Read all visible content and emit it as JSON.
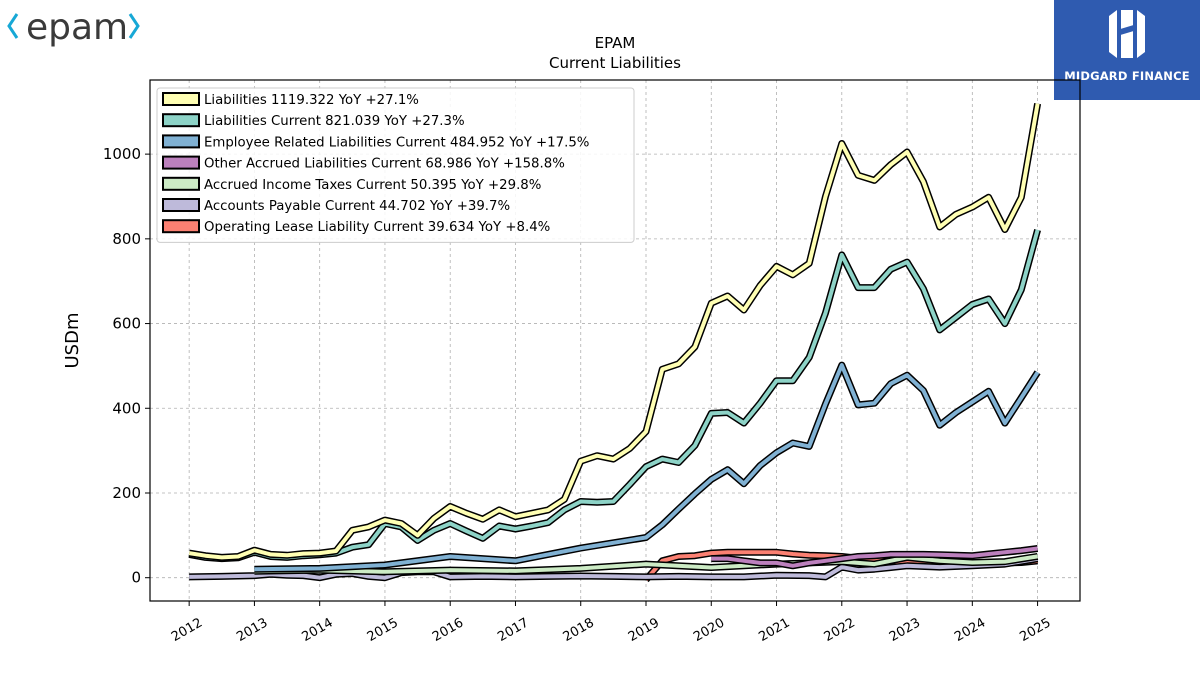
{
  "branding": {
    "left_logo_text": "epam",
    "right_logo_text": "MIDGARD FINANCE",
    "right_logo_color": "#2f5bb0",
    "left_logo_color": "#3a3a3a",
    "left_logo_accent": "#17a8d6"
  },
  "chart_data": {
    "type": "line",
    "title": "EPAM",
    "subtitle": "Current  Liabilities",
    "xlabel": "",
    "ylabel": "USDm",
    "xlim": [
      2011.4,
      2025.65
    ],
    "ylim": [
      -55,
      1175
    ],
    "yticks": [
      0,
      200,
      400,
      600,
      800,
      1000
    ],
    "xticks": [
      2012,
      2013,
      2014,
      2015,
      2016,
      2017,
      2018,
      2019,
      2020,
      2021,
      2022,
      2023,
      2024,
      2025
    ],
    "grid": true,
    "legend_position": "top-left",
    "series": [
      {
        "name": "Liabilities",
        "legend_label": "Liabilities  1119.322 YoY +27.1%",
        "color": "#ffffb3",
        "points": [
          [
            2012.0,
            58
          ],
          [
            2012.25,
            52
          ],
          [
            2012.5,
            48
          ],
          [
            2012.75,
            50
          ],
          [
            2013.0,
            65
          ],
          [
            2013.25,
            55
          ],
          [
            2013.5,
            53
          ],
          [
            2013.75,
            57
          ],
          [
            2014.0,
            58
          ],
          [
            2014.25,
            63
          ],
          [
            2014.5,
            112
          ],
          [
            2014.75,
            120
          ],
          [
            2015.0,
            136
          ],
          [
            2015.25,
            128
          ],
          [
            2015.5,
            100
          ],
          [
            2015.75,
            140
          ],
          [
            2016.0,
            168
          ],
          [
            2016.25,
            152
          ],
          [
            2016.5,
            138
          ],
          [
            2016.75,
            160
          ],
          [
            2017.0,
            144
          ],
          [
            2017.25,
            152
          ],
          [
            2017.5,
            160
          ],
          [
            2017.75,
            185
          ],
          [
            2018.0,
            275
          ],
          [
            2018.25,
            288
          ],
          [
            2018.5,
            280
          ],
          [
            2018.75,
            305
          ],
          [
            2019.0,
            345
          ],
          [
            2019.25,
            492
          ],
          [
            2019.5,
            505
          ],
          [
            2019.75,
            545
          ],
          [
            2020.0,
            648
          ],
          [
            2020.25,
            665
          ],
          [
            2020.5,
            632
          ],
          [
            2020.75,
            690
          ],
          [
            2021.0,
            735
          ],
          [
            2021.25,
            715
          ],
          [
            2021.5,
            742
          ],
          [
            2021.75,
            900
          ],
          [
            2022.0,
            1025
          ],
          [
            2022.25,
            950
          ],
          [
            2022.5,
            938
          ],
          [
            2022.75,
            975
          ],
          [
            2023.0,
            1005
          ],
          [
            2023.25,
            935
          ],
          [
            2023.5,
            828
          ],
          [
            2023.75,
            858
          ],
          [
            2024.0,
            875
          ],
          [
            2024.25,
            898
          ],
          [
            2024.5,
            822
          ],
          [
            2024.75,
            898
          ],
          [
            2025.0,
            1119.322
          ]
        ]
      },
      {
        "name": "Liabilities Current",
        "legend_label": "Liabilities Current  821.039 YoY +27.3%",
        "color": "#8dd3c7",
        "points": [
          [
            2012.0,
            55
          ],
          [
            2012.25,
            48
          ],
          [
            2012.5,
            45
          ],
          [
            2012.75,
            47
          ],
          [
            2013.0,
            60
          ],
          [
            2013.25,
            50
          ],
          [
            2013.5,
            48
          ],
          [
            2013.75,
            52
          ],
          [
            2014.0,
            54
          ],
          [
            2014.25,
            58
          ],
          [
            2014.5,
            72
          ],
          [
            2014.75,
            78
          ],
          [
            2015.0,
            128
          ],
          [
            2015.25,
            120
          ],
          [
            2015.5,
            88
          ],
          [
            2015.75,
            112
          ],
          [
            2016.0,
            128
          ],
          [
            2016.25,
            110
          ],
          [
            2016.5,
            93
          ],
          [
            2016.75,
            122
          ],
          [
            2017.0,
            115
          ],
          [
            2017.25,
            122
          ],
          [
            2017.5,
            130
          ],
          [
            2017.75,
            160
          ],
          [
            2018.0,
            180
          ],
          [
            2018.25,
            178
          ],
          [
            2018.5,
            180
          ],
          [
            2018.75,
            220
          ],
          [
            2019.0,
            262
          ],
          [
            2019.25,
            280
          ],
          [
            2019.5,
            272
          ],
          [
            2019.75,
            312
          ],
          [
            2020.0,
            388
          ],
          [
            2020.25,
            390
          ],
          [
            2020.5,
            365
          ],
          [
            2020.75,
            412
          ],
          [
            2021.0,
            465
          ],
          [
            2021.25,
            465
          ],
          [
            2021.5,
            520
          ],
          [
            2021.75,
            625
          ],
          [
            2022.0,
            762
          ],
          [
            2022.25,
            685
          ],
          [
            2022.5,
            685
          ],
          [
            2022.75,
            728
          ],
          [
            2023.0,
            745
          ],
          [
            2023.25,
            682
          ],
          [
            2023.5,
            585
          ],
          [
            2023.75,
            615
          ],
          [
            2024.0,
            645
          ],
          [
            2024.25,
            658
          ],
          [
            2024.5,
            600
          ],
          [
            2024.75,
            680
          ],
          [
            2025.0,
            821.039
          ]
        ]
      },
      {
        "name": "Employee Related Liabilities Current",
        "legend_label": "Employee Related Liabilities Current  484.952 YoY +17.5%",
        "color": "#80b1d3",
        "points": [
          [
            2013.0,
            20
          ],
          [
            2014.0,
            22
          ],
          [
            2015.0,
            30
          ],
          [
            2016.0,
            50
          ],
          [
            2017.0,
            40
          ],
          [
            2018.0,
            70
          ],
          [
            2019.0,
            95
          ],
          [
            2019.25,
            125
          ],
          [
            2019.5,
            162
          ],
          [
            2019.75,
            198
          ],
          [
            2020.0,
            232
          ],
          [
            2020.25,
            255
          ],
          [
            2020.5,
            222
          ],
          [
            2020.75,
            265
          ],
          [
            2021.0,
            295
          ],
          [
            2021.25,
            318
          ],
          [
            2021.5,
            310
          ],
          [
            2021.75,
            410
          ],
          [
            2022.0,
            502
          ],
          [
            2022.25,
            408
          ],
          [
            2022.5,
            412
          ],
          [
            2022.75,
            458
          ],
          [
            2023.0,
            478
          ],
          [
            2023.25,
            442
          ],
          [
            2023.5,
            360
          ],
          [
            2023.75,
            390
          ],
          [
            2024.0,
            415
          ],
          [
            2024.25,
            440
          ],
          [
            2024.5,
            365
          ],
          [
            2024.75,
            425
          ],
          [
            2025.0,
            484.952
          ]
        ]
      },
      {
        "name": "Other Accrued Liabilities Current",
        "legend_label": "Other Accrued Liabilities Current  68.986 YoY +158.8%",
        "color": "#bc80bd",
        "points": [
          [
            2020.0,
            45
          ],
          [
            2020.25,
            45
          ],
          [
            2020.5,
            40
          ],
          [
            2020.75,
            35
          ],
          [
            2021.0,
            35
          ],
          [
            2021.25,
            28
          ],
          [
            2021.5,
            35
          ],
          [
            2021.75,
            40
          ],
          [
            2022.0,
            45
          ],
          [
            2022.25,
            50
          ],
          [
            2022.5,
            52
          ],
          [
            2022.75,
            55
          ],
          [
            2023.0,
            55
          ],
          [
            2023.25,
            55
          ],
          [
            2023.5,
            54
          ],
          [
            2023.75,
            53
          ],
          [
            2024.0,
            52
          ],
          [
            2024.25,
            56
          ],
          [
            2024.5,
            60
          ],
          [
            2024.75,
            64
          ],
          [
            2025.0,
            68.986
          ]
        ]
      },
      {
        "name": "Accrued Income Taxes Current",
        "legend_label": "Accrued Income Taxes Current  50.395 YoY +29.8%",
        "color": "#ccebc5",
        "points": [
          [
            2013.0,
            15
          ],
          [
            2014.0,
            18
          ],
          [
            2015.0,
            14
          ],
          [
            2016.0,
            18
          ],
          [
            2017.0,
            16
          ],
          [
            2018.0,
            22
          ],
          [
            2019.0,
            32
          ],
          [
            2020.0,
            24
          ],
          [
            2020.5,
            28
          ],
          [
            2021.0,
            32
          ],
          [
            2021.5,
            35
          ],
          [
            2022.0,
            38
          ],
          [
            2022.5,
            32
          ],
          [
            2023.0,
            48
          ],
          [
            2023.5,
            40
          ],
          [
            2024.0,
            36
          ],
          [
            2024.5,
            38
          ],
          [
            2025.0,
            50.395
          ]
        ]
      },
      {
        "name": "Accounts Payable Current",
        "legend_label": "Accounts Payable Current  44.702 YoY +39.7%",
        "color": "#bebada",
        "points": [
          [
            2012.0,
            2
          ],
          [
            2012.5,
            3
          ],
          [
            2013.0,
            5
          ],
          [
            2013.25,
            8
          ],
          [
            2013.5,
            6
          ],
          [
            2013.75,
            5
          ],
          [
            2014.0,
            0
          ],
          [
            2014.25,
            8
          ],
          [
            2014.5,
            10
          ],
          [
            2014.75,
            3
          ],
          [
            2015.0,
            0
          ],
          [
            2015.25,
            12
          ],
          [
            2015.5,
            14
          ],
          [
            2015.75,
            14
          ],
          [
            2016.0,
            2
          ],
          [
            2016.5,
            3
          ],
          [
            2017.0,
            2
          ],
          [
            2017.5,
            3
          ],
          [
            2018.0,
            4
          ],
          [
            2018.5,
            3
          ],
          [
            2019.0,
            2
          ],
          [
            2019.5,
            3
          ],
          [
            2020.0,
            2
          ],
          [
            2020.5,
            2
          ],
          [
            2021.0,
            6
          ],
          [
            2021.5,
            5
          ],
          [
            2021.75,
            2
          ],
          [
            2022.0,
            25
          ],
          [
            2022.25,
            18
          ],
          [
            2022.5,
            20
          ],
          [
            2022.75,
            24
          ],
          [
            2023.0,
            28
          ],
          [
            2023.5,
            25
          ],
          [
            2024.0,
            28
          ],
          [
            2024.5,
            32
          ],
          [
            2025.0,
            44.702
          ]
        ]
      },
      {
        "name": "Operating Lease Liability Current",
        "legend_label": "Operating Lease Liability Current  39.634 YoY +8.4%",
        "color": "#fb8072",
        "points": [
          [
            2019.0,
            -5
          ],
          [
            2019.25,
            40
          ],
          [
            2019.5,
            50
          ],
          [
            2019.75,
            52
          ],
          [
            2020.0,
            58
          ],
          [
            2020.25,
            60
          ],
          [
            2020.5,
            60
          ],
          [
            2020.75,
            60
          ],
          [
            2021.0,
            60
          ],
          [
            2021.25,
            56
          ],
          [
            2021.5,
            53
          ],
          [
            2021.75,
            52
          ],
          [
            2022.0,
            50
          ],
          [
            2022.25,
            46
          ],
          [
            2022.5,
            42
          ],
          [
            2022.75,
            38
          ],
          [
            2023.0,
            38
          ],
          [
            2023.25,
            37
          ],
          [
            2023.5,
            36
          ],
          [
            2023.75,
            36
          ],
          [
            2024.0,
            35
          ],
          [
            2024.25,
            34
          ],
          [
            2024.5,
            35
          ],
          [
            2024.75,
            36
          ],
          [
            2025.0,
            39.634
          ]
        ]
      }
    ]
  }
}
